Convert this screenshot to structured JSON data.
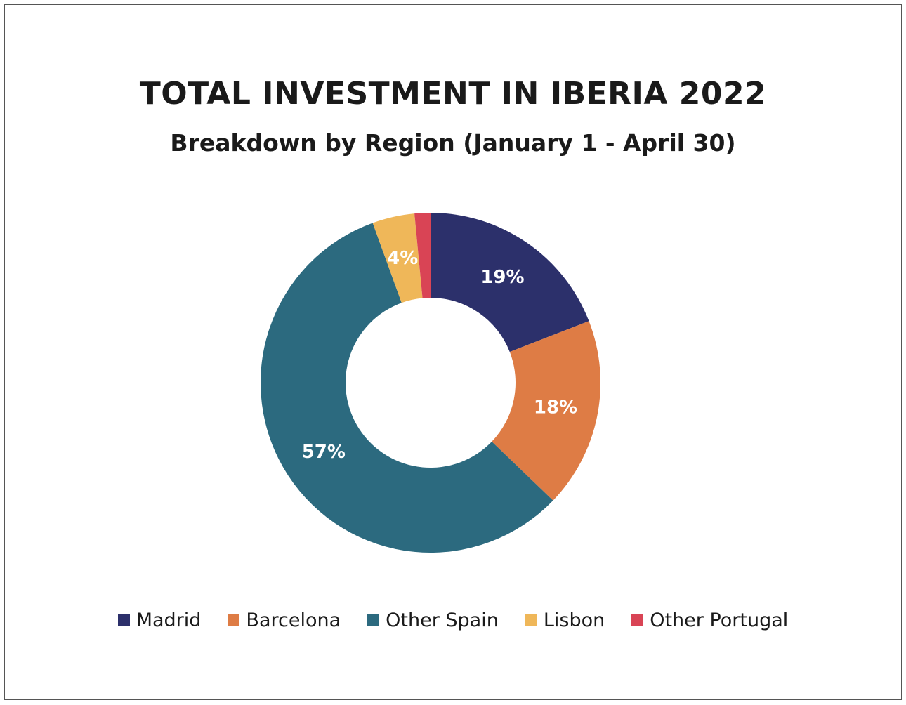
{
  "chart_data": {
    "type": "pie",
    "variant": "donut",
    "title": "TOTAL INVESTMENT IN IBERIA 2022",
    "subtitle": "Breakdown by Region (January 1 - April 30)",
    "legend_position": "bottom",
    "slices": [
      {
        "name": "Madrid",
        "value": 19,
        "label": "19%",
        "color": "#2c306b"
      },
      {
        "name": "Barcelona",
        "value": 18,
        "label": "18%",
        "color": "#de7c45"
      },
      {
        "name": "Other Spain",
        "value": 57,
        "label": "57%",
        "color": "#2c6a7f"
      },
      {
        "name": "Lisbon",
        "value": 4,
        "label": "4%",
        "color": "#efb759"
      },
      {
        "name": "Other Portugal",
        "value": 1.5,
        "label": "",
        "color": "#d94455"
      }
    ]
  }
}
